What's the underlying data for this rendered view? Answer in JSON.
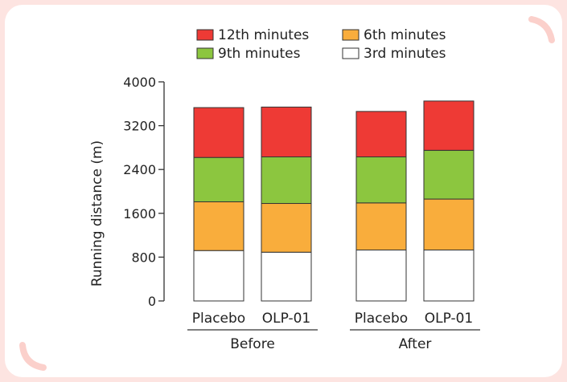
{
  "chart_data": {
    "type": "bar",
    "stacked": true,
    "ylabel": "Running distance (m)",
    "ylim": [
      0,
      4000
    ],
    "yticks": [
      0,
      800,
      1600,
      2400,
      3200,
      4000
    ],
    "categories": [
      "Placebo",
      "OLP-01",
      "Placebo",
      "OLP-01"
    ],
    "groups": [
      {
        "label": "Before",
        "members": [
          0,
          1
        ]
      },
      {
        "label": "After",
        "members": [
          2,
          3
        ]
      }
    ],
    "series": [
      {
        "name": "3rd minutes",
        "color": "#ffffff",
        "values": [
          920,
          890,
          930,
          930
        ]
      },
      {
        "name": "6th minutes",
        "color": "#f9ad3c",
        "values": [
          890,
          890,
          860,
          930
        ]
      },
      {
        "name": "9th minutes",
        "color": "#8cc63f",
        "values": [
          810,
          850,
          840,
          890
        ]
      },
      {
        "name": "12th minutes",
        "color": "#ee3a35",
        "values": [
          910,
          910,
          830,
          900
        ]
      }
    ],
    "legend": {
      "placement": "top",
      "order": [
        "12th minutes",
        "6th minutes",
        "9th minutes",
        "3rd minutes"
      ]
    },
    "grid": false
  }
}
